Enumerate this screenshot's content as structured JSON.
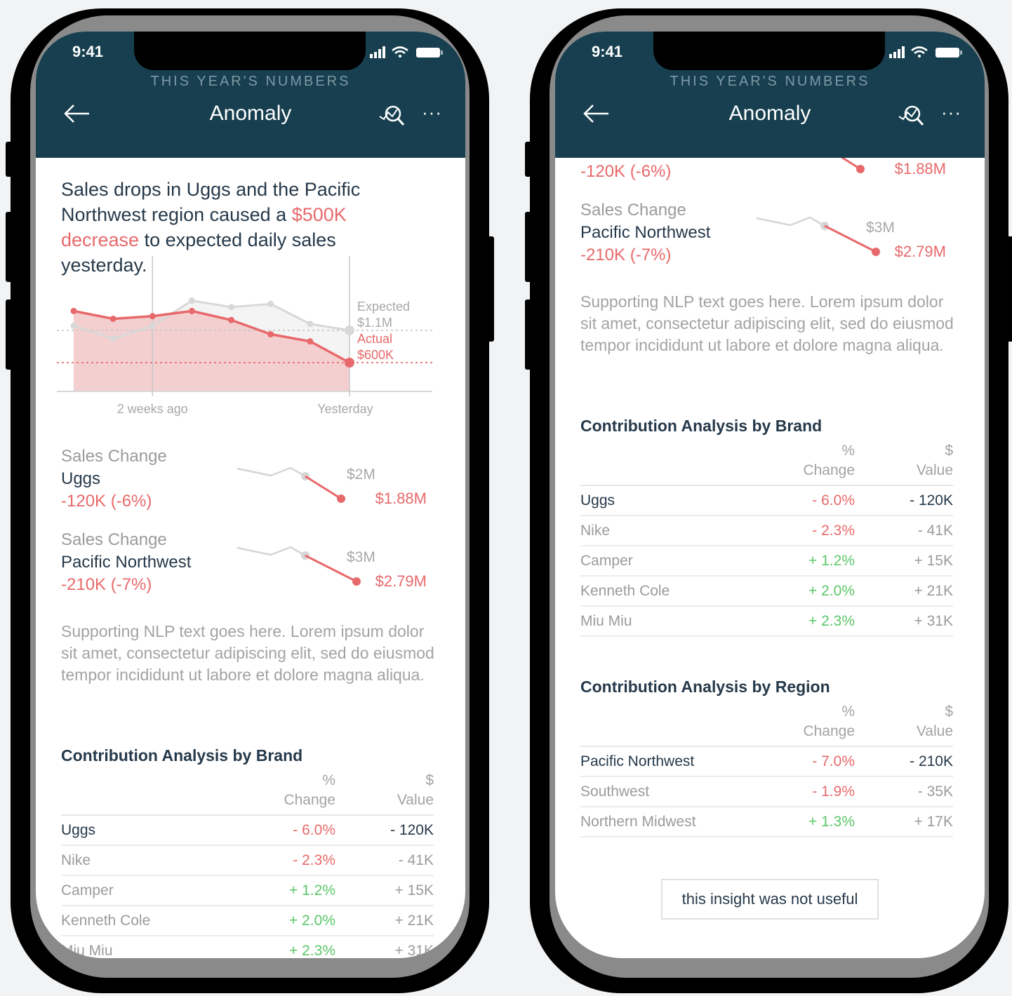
{
  "status_bar": {
    "time": "9:41"
  },
  "header": {
    "subtitle": "THIS YEAR'S NUMBERS",
    "title": "Anomaly",
    "back_icon": "arrow-left-icon",
    "insight_icon": "insight-search-icon",
    "more_icon": "more-horizontal-icon",
    "more_label": "···"
  },
  "headline": {
    "before": "Sales drops in Uggs and the Pacific Northwest region caused a ",
    "highlight": "$500K decrease",
    "after": " to expected daily sales yesterday."
  },
  "chart_data": {
    "type": "area",
    "x_ticks": [
      {
        "index": 2,
        "label": "2 weeks ago"
      },
      {
        "index": 7,
        "label": "Yesterday"
      }
    ],
    "series": [
      {
        "key": "expected",
        "values": [
          1170,
          970,
          1170,
          1560,
          1460,
          1510,
          1200,
          1100
        ],
        "color": "#cfcfcf"
      },
      {
        "key": "actual",
        "values": [
          1400,
          1280,
          1320,
          1400,
          1260,
          1040,
          930,
          600
        ],
        "color": "#e8696b"
      }
    ],
    "unit": "$K",
    "ylim": [
      150,
      2250
    ],
    "annotations": {
      "expected_label": "Expected",
      "expected_value": "$1.1M",
      "actual_label": "Actual",
      "actual_value": "$600K"
    },
    "grid": false
  },
  "changes": [
    {
      "label": "Sales Change",
      "name": "Uggs",
      "delta": "-120K (-6%)",
      "expected": "$2M",
      "actual": "$1.88M"
    },
    {
      "label": "Sales Change",
      "name": "Pacific Northwest",
      "delta": "-210K (-7%)",
      "expected": "$3M",
      "actual": "$2.79M"
    }
  ],
  "nlp_text": "Supporting NLP text goes here. Lorem ipsum dolor sit amet, consectetur adipiscing elit, sed do eiusmod tempor incididunt ut labore et dolore magna aliqua.",
  "brand_table": {
    "title": "Contribution Analysis by Brand",
    "headers": {
      "change_top": "%",
      "change": "Change",
      "value_top": "$",
      "value": "Value"
    },
    "rows": [
      {
        "name": "Uggs",
        "change": "- 6.0%",
        "value": "- 120K"
      },
      {
        "name": "Nike",
        "change": "- 2.3%",
        "value": "- 41K"
      },
      {
        "name": "Camper",
        "change": "+ 1.2%",
        "value": "+ 15K"
      },
      {
        "name": "Kenneth Cole",
        "change": "+ 2.0%",
        "value": "+ 21K"
      },
      {
        "name": "Miu Miu",
        "change": "+ 2.3%",
        "value": "+ 31K"
      }
    ]
  },
  "region_table": {
    "title": "Contribution Analysis by Region",
    "headers": {
      "change_top": "%",
      "change": "Change",
      "value_top": "$",
      "value": "Value"
    },
    "rows": [
      {
        "name": "Pacific Northwest",
        "change": "- 7.0%",
        "value": "- 210K"
      },
      {
        "name": "Southwest",
        "change": "- 1.9%",
        "value": "- 35K"
      },
      {
        "name": "Northern Midwest",
        "change": "+ 1.3%",
        "value": "+ 17K"
      }
    ]
  },
  "feedback_button": "this insight was not useful",
  "colors": {
    "header": "#173f4f",
    "negative": "#e8696b",
    "positive": "#5cc76a",
    "text": "#26394a",
    "muted": "#9b9b9b"
  }
}
